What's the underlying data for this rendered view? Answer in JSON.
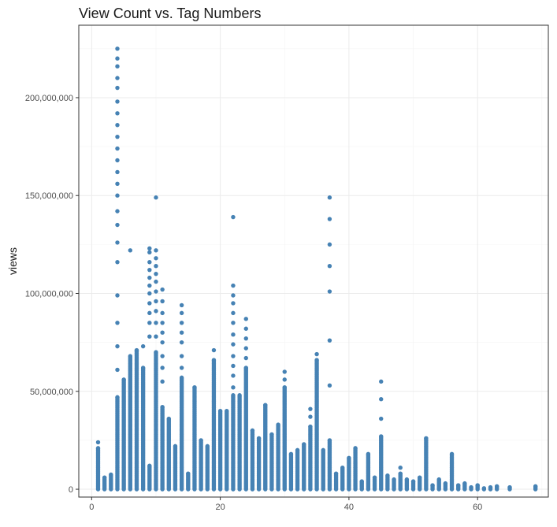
{
  "chart_data": {
    "type": "scatter",
    "title": "View Count vs. Tag Numbers",
    "xlabel": "",
    "ylabel": "views",
    "xlim": [
      -2,
      71
    ],
    "ylim": [
      -4000000,
      237000000
    ],
    "x_ticks": [
      0,
      20,
      40,
      60
    ],
    "x_tick_labels": [
      "0",
      "20",
      "40",
      "60"
    ],
    "y_ticks": [
      0,
      50000000,
      100000000,
      150000000,
      200000000
    ],
    "y_tick_labels": [
      "0",
      "50,000,000",
      "100,000,000",
      "150,000,000",
      "200,000,000"
    ],
    "grid": true,
    "point_color": "#4682B4",
    "columns": [
      {
        "x": 1,
        "max": 21000000,
        "extra": [
          24000000
        ]
      },
      {
        "x": 2,
        "max": 6000000,
        "extra": []
      },
      {
        "x": 3,
        "max": 7500000,
        "extra": []
      },
      {
        "x": 4,
        "max": 47000000,
        "extra": [
          61000000,
          73000000,
          85000000,
          99000000,
          116000000,
          126000000,
          135000000,
          142000000,
          150000000,
          156000000,
          162000000,
          168000000,
          174000000,
          180000000,
          186000000,
          192000000,
          198000000,
          205000000,
          210000000,
          216000000,
          220000000,
          225000000
        ]
      },
      {
        "x": 5,
        "max": 56000000,
        "extra": []
      },
      {
        "x": 6,
        "max": 68000000,
        "extra": [
          122000000
        ]
      },
      {
        "x": 7,
        "max": 71000000,
        "extra": []
      },
      {
        "x": 8,
        "max": 62000000,
        "extra": [
          73000000
        ]
      },
      {
        "x": 9,
        "max": 12000000,
        "extra": [
          78000000,
          85000000,
          90000000,
          95000000,
          100000000,
          104000000,
          108000000,
          112000000,
          116000000,
          121000000,
          123000000
        ]
      },
      {
        "x": 10,
        "max": 70000000,
        "extra": [
          78000000,
          85000000,
          91000000,
          96000000,
          101000000,
          106000000,
          110000000,
          114000000,
          118000000,
          122000000,
          149000000
        ]
      },
      {
        "x": 11,
        "max": 42000000,
        "extra": [
          55000000,
          62000000,
          68000000,
          75000000,
          80000000,
          85000000,
          90000000,
          96000000,
          102000000
        ]
      },
      {
        "x": 12,
        "max": 36000000,
        "extra": []
      },
      {
        "x": 13,
        "max": 22000000,
        "extra": []
      },
      {
        "x": 14,
        "max": 57000000,
        "extra": [
          62000000,
          68000000,
          75000000,
          80000000,
          85000000,
          90000000,
          94000000
        ]
      },
      {
        "x": 15,
        "max": 8000000,
        "extra": []
      },
      {
        "x": 16,
        "max": 52000000,
        "extra": []
      },
      {
        "x": 17,
        "max": 25000000,
        "extra": []
      },
      {
        "x": 18,
        "max": 22000000,
        "extra": []
      },
      {
        "x": 19,
        "max": 66000000,
        "extra": [
          71000000
        ]
      },
      {
        "x": 20,
        "max": 40000000,
        "extra": []
      },
      {
        "x": 21,
        "max": 40000000,
        "extra": []
      },
      {
        "x": 22,
        "max": 48000000,
        "extra": [
          52000000,
          58000000,
          63000000,
          68000000,
          74000000,
          79000000,
          85000000,
          90000000,
          95000000,
          99000000,
          104000000,
          139000000
        ]
      },
      {
        "x": 23,
        "max": 48000000,
        "extra": []
      },
      {
        "x": 24,
        "max": 62000000,
        "extra": [
          67000000,
          72000000,
          77000000,
          82000000,
          87000000
        ]
      },
      {
        "x": 25,
        "max": 30000000,
        "extra": []
      },
      {
        "x": 26,
        "max": 26000000,
        "extra": []
      },
      {
        "x": 27,
        "max": 43000000,
        "extra": []
      },
      {
        "x": 28,
        "max": 28000000,
        "extra": []
      },
      {
        "x": 29,
        "max": 33000000,
        "extra": []
      },
      {
        "x": 30,
        "max": 52000000,
        "extra": [
          56000000,
          60000000
        ]
      },
      {
        "x": 31,
        "max": 18000000,
        "extra": []
      },
      {
        "x": 32,
        "max": 20000000,
        "extra": []
      },
      {
        "x": 33,
        "max": 23000000,
        "extra": []
      },
      {
        "x": 34,
        "max": 32000000,
        "extra": [
          37000000,
          41000000
        ]
      },
      {
        "x": 35,
        "max": 66000000,
        "extra": [
          69000000
        ]
      },
      {
        "x": 36,
        "max": 20000000,
        "extra": []
      },
      {
        "x": 37,
        "max": 25000000,
        "extra": [
          53000000,
          76000000,
          101000000,
          114000000,
          125000000,
          138000000,
          149000000
        ]
      },
      {
        "x": 38,
        "max": 8000000,
        "extra": []
      },
      {
        "x": 39,
        "max": 11000000,
        "extra": []
      },
      {
        "x": 40,
        "max": 16000000,
        "extra": []
      },
      {
        "x": 41,
        "max": 21000000,
        "extra": []
      },
      {
        "x": 42,
        "max": 4000000,
        "extra": []
      },
      {
        "x": 43,
        "max": 18000000,
        "extra": []
      },
      {
        "x": 44,
        "max": 6000000,
        "extra": []
      },
      {
        "x": 45,
        "max": 27000000,
        "extra": [
          36000000,
          46000000,
          55000000
        ]
      },
      {
        "x": 46,
        "max": 7000000,
        "extra": []
      },
      {
        "x": 47,
        "max": 5000000,
        "extra": []
      },
      {
        "x": 48,
        "max": 8000000,
        "extra": [
          11000000
        ]
      },
      {
        "x": 49,
        "max": 5000000,
        "extra": []
      },
      {
        "x": 50,
        "max": 4000000,
        "extra": []
      },
      {
        "x": 51,
        "max": 6000000,
        "extra": []
      },
      {
        "x": 52,
        "max": 26000000,
        "extra": []
      },
      {
        "x": 53,
        "max": 2000000,
        "extra": []
      },
      {
        "x": 54,
        "max": 5000000,
        "extra": []
      },
      {
        "x": 55,
        "max": 3000000,
        "extra": []
      },
      {
        "x": 56,
        "max": 18000000,
        "extra": []
      },
      {
        "x": 57,
        "max": 2000000,
        "extra": []
      },
      {
        "x": 58,
        "max": 3000000,
        "extra": []
      },
      {
        "x": 59,
        "max": 1000000,
        "extra": []
      },
      {
        "x": 60,
        "max": 2000000,
        "extra": []
      },
      {
        "x": 61,
        "max": 500000,
        "extra": []
      },
      {
        "x": 62,
        "max": 1000000,
        "extra": []
      },
      {
        "x": 63,
        "max": 1500000,
        "extra": []
      },
      {
        "x": 65,
        "max": 1000000,
        "extra": []
      },
      {
        "x": 69,
        "max": 1500000,
        "extra": []
      }
    ]
  }
}
